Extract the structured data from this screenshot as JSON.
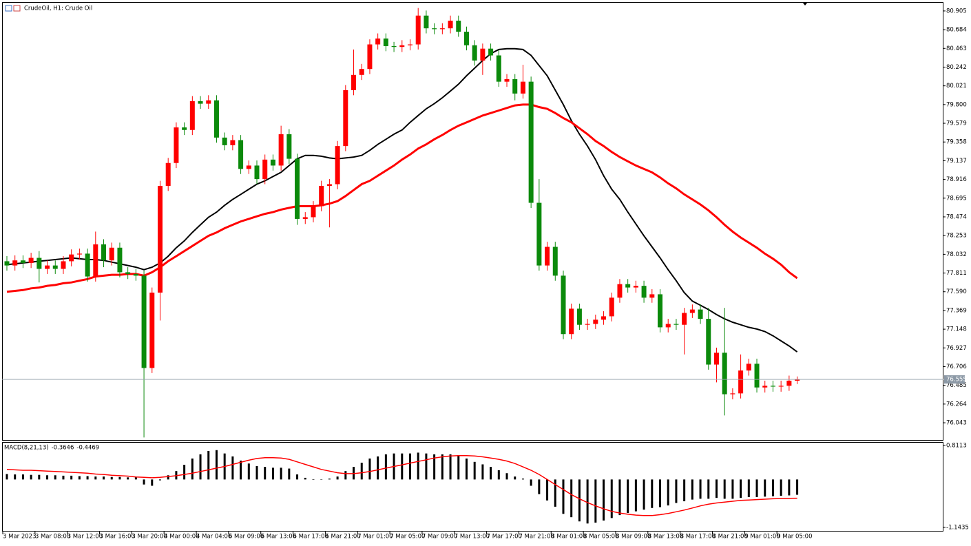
{
  "chart_data": [
    {
      "type": "candlestick",
      "title": "CrudeOil, H1:  Crude Oil",
      "categories": [
        "3 Mar 2023",
        null,
        null,
        null,
        "3 Mar 08:00",
        null,
        null,
        null,
        "3 Mar 12:00",
        null,
        null,
        null,
        "3 Mar 16:00",
        null,
        null,
        null,
        "3 Mar 20:00",
        null,
        null,
        null,
        "4 Mar 00:00",
        null,
        null,
        null,
        "4 Mar 04:00",
        null,
        null,
        null,
        "6 Mar 09:00",
        null,
        null,
        null,
        "6 Mar 13:00",
        null,
        null,
        null,
        "6 Mar 17:00",
        null,
        null,
        null,
        "6 Mar 21:00",
        null,
        null,
        null,
        "7 Mar 01:00",
        null,
        null,
        null,
        "7 Mar 05:00",
        null,
        null,
        null,
        "7 Mar 09:00",
        null,
        null,
        null,
        "7 Mar 13:00",
        null,
        null,
        null,
        "7 Mar 17:00",
        null,
        null,
        null,
        "7 Mar 21:00",
        null,
        null,
        null,
        "8 Mar 01:00",
        null,
        null,
        null,
        "8 Mar 05:00",
        null,
        null,
        null,
        "8 Mar 09:00",
        null,
        null,
        null,
        "8 Mar 13:00",
        null,
        null,
        null,
        "8 Mar 17:00",
        null,
        null,
        null,
        "8 Mar 21:00",
        null,
        null,
        null,
        "9 Mar 01:00",
        null,
        null,
        null,
        "9 Mar 05:00",
        null,
        null
      ],
      "open": [
        77.95,
        77.9,
        77.96,
        77.93,
        77.99,
        77.86,
        77.9,
        77.86,
        77.95,
        78.03,
        78.04,
        77.77,
        78.15,
        77.96,
        78.11,
        77.82,
        77.8,
        77.78,
        76.69,
        77.58,
        78.84,
        79.11,
        79.53,
        79.5,
        79.84,
        79.81,
        79.85,
        79.41,
        79.32,
        79.38,
        79.04,
        79.08,
        78.92,
        79.15,
        79.08,
        79.45,
        79.16,
        78.45,
        78.47,
        78.6,
        78.84,
        78.86,
        79.31,
        79.97,
        80.15,
        80.22,
        80.51,
        80.58,
        80.49,
        80.48,
        80.5,
        80.51,
        80.85,
        80.7,
        80.69,
        80.7,
        80.79,
        80.66,
        80.5,
        80.32,
        80.46,
        80.38,
        80.07,
        80.1,
        79.93,
        80.07,
        78.64,
        77.9,
        78.12,
        77.78,
        77.09,
        77.39,
        77.2,
        77.21,
        77.26,
        77.3,
        77.52,
        77.68,
        77.64,
        77.66,
        77.52,
        77.56,
        77.17,
        77.21,
        77.2,
        77.34,
        77.38,
        77.27,
        76.73,
        76.87,
        76.38,
        76.39,
        76.66,
        76.74,
        76.46,
        76.48,
        76.47,
        76.48,
        76.54
      ],
      "high": [
        78.01,
        78.02,
        78.02,
        78.05,
        78.07,
        77.96,
        77.96,
        78.01,
        78.09,
        78.1,
        78.1,
        78.3,
        78.21,
        78.17,
        78.17,
        77.88,
        77.86,
        77.84,
        77.64,
        78.9,
        79.17,
        79.59,
        79.59,
        79.9,
        79.9,
        79.91,
        79.91,
        79.47,
        79.44,
        79.44,
        79.14,
        79.14,
        79.21,
        79.21,
        79.55,
        79.51,
        79.22,
        78.53,
        78.66,
        78.9,
        78.92,
        79.37,
        80.03,
        80.45,
        80.28,
        80.57,
        80.64,
        80.64,
        80.54,
        80.56,
        80.57,
        80.94,
        80.91,
        80.76,
        80.76,
        80.85,
        80.85,
        80.72,
        80.56,
        80.52,
        80.52,
        80.44,
        80.16,
        80.16,
        80.27,
        80.13,
        78.92,
        78.18,
        78.18,
        77.84,
        77.45,
        77.45,
        77.27,
        77.32,
        77.36,
        77.58,
        77.74,
        77.74,
        77.72,
        77.72,
        77.62,
        77.62,
        77.27,
        77.27,
        77.4,
        77.44,
        77.44,
        77.4,
        76.93,
        77.4,
        76.45,
        76.85,
        76.8,
        76.8,
        76.54,
        76.54,
        76.54,
        76.6,
        76.59
      ],
      "low": [
        77.84,
        77.84,
        77.87,
        77.87,
        77.7,
        77.8,
        77.8,
        77.8,
        77.89,
        77.97,
        77.71,
        77.71,
        77.88,
        77.9,
        77.76,
        77.74,
        77.72,
        75.87,
        76.63,
        77.25,
        78.78,
        79.05,
        79.44,
        79.44,
        79.75,
        79.75,
        79.35,
        79.26,
        79.26,
        78.98,
        78.98,
        78.86,
        78.86,
        79.02,
        79.02,
        79.1,
        78.38,
        78.39,
        78.41,
        78.54,
        78.35,
        78.8,
        79.25,
        79.91,
        80.09,
        80.16,
        80.45,
        80.43,
        80.42,
        80.42,
        80.44,
        80.45,
        80.64,
        80.63,
        80.63,
        80.64,
        80.6,
        80.44,
        80.26,
        80.15,
        80.32,
        80.01,
        80.01,
        79.85,
        79.87,
        78.58,
        77.84,
        77.84,
        77.72,
        77.03,
        77.03,
        77.14,
        77.14,
        77.15,
        77.2,
        77.24,
        77.46,
        77.58,
        77.58,
        77.46,
        77.46,
        77.11,
        77.11,
        77.14,
        76.85,
        77.28,
        77.21,
        76.67,
        76.52,
        76.13,
        76.32,
        76.33,
        76.6,
        76.4,
        76.4,
        76.41,
        76.41,
        76.42,
        76.5
      ],
      "close": [
        77.9,
        77.96,
        77.93,
        77.99,
        77.86,
        77.9,
        77.86,
        77.95,
        78.03,
        78.04,
        77.77,
        78.15,
        77.96,
        78.11,
        77.82,
        77.8,
        77.78,
        76.69,
        77.58,
        78.84,
        79.11,
        79.53,
        79.5,
        79.84,
        79.81,
        79.85,
        79.41,
        79.32,
        79.38,
        79.04,
        79.08,
        78.92,
        79.15,
        79.08,
        79.45,
        79.16,
        78.45,
        78.47,
        78.6,
        78.84,
        78.86,
        79.31,
        79.97,
        80.15,
        80.22,
        80.51,
        80.58,
        80.49,
        80.48,
        80.5,
        80.51,
        80.85,
        80.7,
        80.69,
        80.7,
        80.79,
        80.66,
        80.5,
        80.32,
        80.46,
        80.38,
        80.07,
        80.1,
        79.93,
        80.07,
        78.64,
        77.9,
        78.12,
        77.78,
        77.09,
        77.39,
        77.2,
        77.21,
        77.26,
        77.3,
        77.52,
        77.68,
        77.64,
        77.66,
        77.52,
        77.56,
        77.17,
        77.21,
        77.2,
        77.34,
        77.38,
        77.27,
        76.73,
        76.87,
        76.38,
        76.39,
        76.66,
        76.74,
        76.46,
        76.48,
        76.47,
        76.48,
        76.54,
        76.555
      ],
      "up_color": "#ff0000",
      "down_color": "#0b8a0b",
      "series": [
        {
          "color": "#000000",
          "values": [
            77.91,
            77.92,
            77.93,
            77.94,
            77.95,
            77.96,
            77.97,
            77.98,
            77.99,
            77.98,
            77.97,
            77.97,
            77.96,
            77.94,
            77.92,
            77.9,
            77.88,
            77.85,
            77.88,
            77.93,
            78.01,
            78.11,
            78.19,
            78.29,
            78.38,
            78.47,
            78.53,
            78.61,
            78.68,
            78.74,
            78.8,
            78.86,
            78.9,
            78.95,
            79.0,
            79.08,
            79.16,
            79.2,
            79.2,
            79.19,
            79.17,
            79.16,
            79.17,
            79.18,
            79.2,
            79.26,
            79.33,
            79.39,
            79.45,
            79.5,
            79.59,
            79.67,
            79.75,
            79.81,
            79.88,
            79.96,
            80.04,
            80.14,
            80.23,
            80.32,
            80.4,
            80.45,
            80.46,
            80.46,
            80.45,
            80.38,
            80.26,
            80.14,
            79.97,
            79.8,
            79.61,
            79.45,
            79.31,
            79.15,
            78.96,
            78.8,
            78.68,
            78.53,
            78.39,
            78.25,
            78.12,
            77.99,
            77.85,
            77.72,
            77.58,
            77.48,
            77.43,
            77.38,
            77.32,
            77.27,
            77.23,
            77.2,
            77.17,
            77.15,
            77.12,
            77.07,
            77.01,
            76.95,
            76.88
          ]
        },
        {
          "color": "#ff0000",
          "values": [
            77.59,
            77.6,
            77.61,
            77.63,
            77.64,
            77.66,
            77.67,
            77.69,
            77.7,
            77.72,
            77.74,
            77.77,
            77.78,
            77.79,
            77.79,
            77.8,
            77.8,
            77.78,
            77.82,
            77.88,
            77.95,
            78.01,
            78.07,
            78.13,
            78.19,
            78.25,
            78.29,
            78.34,
            78.38,
            78.42,
            78.45,
            78.48,
            78.51,
            78.53,
            78.56,
            78.58,
            78.6,
            78.6,
            78.6,
            78.61,
            78.63,
            78.66,
            78.72,
            78.79,
            78.86,
            78.9,
            78.96,
            79.02,
            79.08,
            79.15,
            79.21,
            79.28,
            79.33,
            79.39,
            79.44,
            79.5,
            79.55,
            79.59,
            79.63,
            79.67,
            79.7,
            79.73,
            79.76,
            79.79,
            79.8,
            79.8,
            79.77,
            79.75,
            79.7,
            79.64,
            79.59,
            79.52,
            79.45,
            79.37,
            79.31,
            79.24,
            79.18,
            79.13,
            79.08,
            79.04,
            79.0,
            78.94,
            78.87,
            78.81,
            78.74,
            78.68,
            78.62,
            78.55,
            78.47,
            78.38,
            78.3,
            78.23,
            78.17,
            78.11,
            78.04,
            77.98,
            77.91,
            77.82,
            77.75
          ]
        }
      ],
      "ylim": [
        75.832,
        81.01
      ],
      "yticks": [
        80.905,
        80.684,
        80.463,
        80.242,
        80.021,
        {
          "value": 79.8,
          "label": "79.800"
        },
        79.579,
        79.358,
        79.137,
        78.916,
        78.695,
        78.474,
        78.253,
        78.032,
        77.811,
        {
          "value": 77.59,
          "label": "77.590"
        },
        77.369,
        77.148,
        76.927,
        76.706,
        76.485,
        76.264,
        76.043
      ]
    },
    {
      "type": "bar",
      "title": "MACD(8,21,13)",
      "color": "#000000",
      "values": [
        0.13,
        0.12,
        0.12,
        0.11,
        0.11,
        0.1,
        0.1,
        0.09,
        0.09,
        0.08,
        0.08,
        0.07,
        0.07,
        0.06,
        0.06,
        0.05,
        0.05,
        -0.12,
        -0.15,
        -0.02,
        0.1,
        0.2,
        0.35,
        0.5,
        0.6,
        0.68,
        0.7,
        0.62,
        0.55,
        0.45,
        0.38,
        0.32,
        0.3,
        0.28,
        0.28,
        0.26,
        0.12,
        0.04,
        -0.01,
        0.0,
        0.02,
        0.07,
        0.2,
        0.3,
        0.4,
        0.5,
        0.55,
        0.6,
        0.62,
        0.62,
        0.62,
        0.64,
        0.62,
        0.6,
        0.6,
        0.6,
        0.58,
        0.5,
        0.42,
        0.36,
        0.3,
        0.22,
        0.15,
        0.07,
        0.02,
        -0.15,
        -0.35,
        -0.5,
        -0.65,
        -0.82,
        -0.9,
        -1.0,
        -1.05,
        -1.03,
        -0.98,
        -0.92,
        -0.85,
        -0.8,
        -0.76,
        -0.72,
        -0.68,
        -0.66,
        -0.62,
        -0.56,
        -0.52,
        -0.48,
        -0.46,
        -0.46,
        -0.44,
        -0.46,
        -0.46,
        -0.44,
        -0.42,
        -0.42,
        -0.41,
        -0.4,
        -0.39,
        -0.38,
        -0.3646
      ],
      "series": [
        {
          "color": "#ff0000",
          "values": [
            0.24,
            0.23,
            0.22,
            0.22,
            0.21,
            0.2,
            0.19,
            0.18,
            0.17,
            0.16,
            0.15,
            0.13,
            0.12,
            0.1,
            0.09,
            0.08,
            0.06,
            0.05,
            0.04,
            0.05,
            0.07,
            0.09,
            0.12,
            0.15,
            0.19,
            0.23,
            0.27,
            0.31,
            0.36,
            0.41,
            0.46,
            0.5,
            0.52,
            0.52,
            0.51,
            0.48,
            0.42,
            0.36,
            0.3,
            0.24,
            0.2,
            0.16,
            0.14,
            0.14,
            0.16,
            0.19,
            0.23,
            0.27,
            0.31,
            0.35,
            0.39,
            0.43,
            0.47,
            0.51,
            0.54,
            0.56,
            0.57,
            0.57,
            0.56,
            0.54,
            0.51,
            0.48,
            0.44,
            0.38,
            0.3,
            0.22,
            0.12,
            0.0,
            -0.12,
            -0.24,
            -0.36,
            -0.46,
            -0.55,
            -0.63,
            -0.7,
            -0.76,
            -0.8,
            -0.83,
            -0.85,
            -0.86,
            -0.86,
            -0.84,
            -0.81,
            -0.77,
            -0.73,
            -0.68,
            -0.63,
            -0.59,
            -0.56,
            -0.54,
            -0.52,
            -0.5,
            -0.49,
            -0.48,
            -0.47,
            -0.46,
            -0.455,
            -0.45,
            -0.4469
          ]
        }
      ],
      "ylim": [
        -1.242,
        0.893
      ],
      "yticks": [
        0.8113,
        -1.1435
      ]
    }
  ]
}
